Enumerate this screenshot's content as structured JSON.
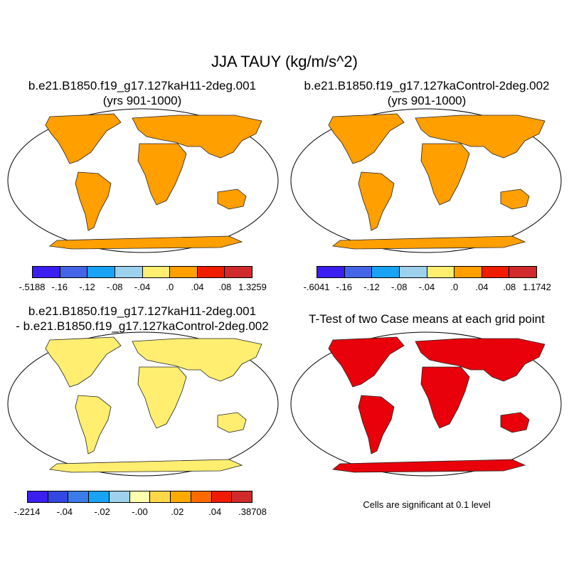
{
  "title": "JJA TAUY (kg/m/s^2)",
  "panels": [
    {
      "title_line1": "b.e21.B1850.f19_g17.127kaH11-2deg.001",
      "title_line2": "(yrs 901-1000)"
    },
    {
      "title_line1": "b.e21.B1850.f19_g17.127kaControl-2deg.002",
      "title_line2": "(yrs 901-1000)"
    },
    {
      "title_line1": "b.e21.B1850.f19_g17.127kaH11-2deg.001",
      "title_line2": "- b.e21.B1850.f19_g17.127kaControl-2deg.002"
    },
    {
      "title_line1": "T-Test of two Case means at each grid point",
      "title_line2": ""
    }
  ],
  "colorbars": [
    {
      "colors": [
        "#3a1ff0",
        "#4466e6",
        "#18a3f5",
        "#9ed2ec",
        "#ffee70",
        "#ff9f00",
        "#f01c00",
        "#d02a2a"
      ],
      "labels": [
        "-.5188",
        "-.16",
        "-.12",
        "-.08",
        "-.04",
        ".0",
        ".04",
        ".08",
        "1.3259"
      ]
    },
    {
      "colors": [
        "#3a1ff0",
        "#4466e6",
        "#18a3f5",
        "#9ed2ec",
        "#ffee70",
        "#ff9f00",
        "#f01c00",
        "#d02a2a"
      ],
      "labels": [
        "-.6041",
        "-.16",
        "-.12",
        "-.08",
        "-.04",
        ".0",
        ".04",
        ".08",
        "1.1742"
      ]
    },
    {
      "colors": [
        "#3a1ff0",
        "#3248e0",
        "#3c7ce8",
        "#18a3f5",
        "#9ed2ec",
        "#ffffb0",
        "#ffd84a",
        "#ffaa00",
        "#ff6a00",
        "#f01c00",
        "#d02a2a"
      ],
      "labels": [
        "-.2214",
        "-.04",
        "-.02",
        "-.00",
        ".02",
        ".04",
        ".38708"
      ]
    }
  ],
  "significance_note": "Cells are significant at 0.1 level",
  "map_fill": {
    "tauy_h11": "#ff9f00",
    "tauy_ctrl": "#ff9f00",
    "diff": "#ffee70",
    "ttest": "#e8000a"
  }
}
